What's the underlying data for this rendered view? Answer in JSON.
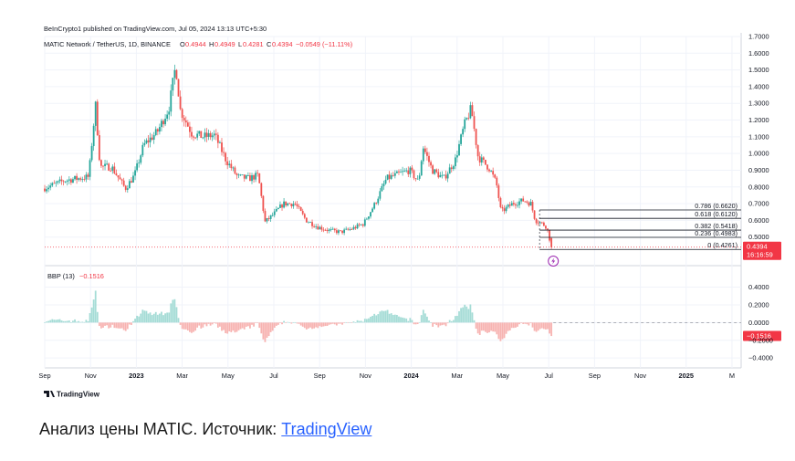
{
  "header": {
    "published": "BeInCrypto1 published on TradingView.com, Jul 05, 2024 13:13 UTC+5:30",
    "symbol": "MATIC Network / TetherUS, 1D, BINANCE",
    "ohlc": {
      "o_label": "O",
      "o_value": "0.4944",
      "h_label": "H",
      "h_value": "0.4949",
      "l_label": "L",
      "l_value": "0.4281",
      "c_label": "C",
      "c_value": "0.4394",
      "change": "−0.0549 (−11.11%)"
    }
  },
  "indicator": {
    "name": "BBP (13)",
    "value": "−0.1516"
  },
  "branding": {
    "text": "TradingView"
  },
  "caption": {
    "text": "Анализ цены MATIC. Источник: ",
    "link": "TradingView"
  },
  "colors": {
    "up": "#26a69a",
    "down": "#ef5350",
    "up_hist": "#a5dcd6",
    "down_hist": "#f7b3b1",
    "fib": "#131722",
    "price_tag": "#f23645"
  },
  "chart_data": [
    {
      "type": "candlestick",
      "ylim": [
        0.4,
        1.7
      ],
      "y_ticks": [
        "0.5000",
        "0.6000",
        "0.7000",
        "0.8000",
        "0.9000",
        "1.0000",
        "1.1000",
        "1.2000",
        "1.3000",
        "1.4000",
        "1.5000",
        "1.6000",
        "1.7000"
      ],
      "x_ticks": [
        "Sep",
        "Nov",
        "2023",
        "Mar",
        "May",
        "Jul",
        "Sep",
        "Nov",
        "2024",
        "Mar",
        "May",
        "Jul",
        "Sep",
        "Nov",
        "2025",
        "M"
      ],
      "x_tick_t": [
        0,
        2,
        4,
        6,
        8,
        10,
        12,
        14,
        16,
        18,
        20,
        22,
        24,
        26,
        28,
        30
      ],
      "last_t": 22.2,
      "anchors": [
        [
          0,
          0.79
        ],
        [
          1,
          0.84
        ],
        [
          2,
          0.86
        ],
        [
          2.3,
          1.29
        ],
        [
          2.5,
          0.92
        ],
        [
          3,
          0.92
        ],
        [
          3.6,
          0.79
        ],
        [
          4,
          0.87
        ],
        [
          4.4,
          1.05
        ],
        [
          5,
          1.13
        ],
        [
          5.5,
          1.27
        ],
        [
          5.8,
          1.53
        ],
        [
          6,
          1.26
        ],
        [
          6.5,
          1.12
        ],
        [
          7,
          1.1
        ],
        [
          7.5,
          1.11
        ],
        [
          8,
          0.96
        ],
        [
          8.5,
          0.86
        ],
        [
          9,
          0.85
        ],
        [
          9.4,
          0.87
        ],
        [
          9.7,
          0.59
        ],
        [
          10.1,
          0.64
        ],
        [
          10.5,
          0.7
        ],
        [
          11,
          0.7
        ],
        [
          11.5,
          0.6
        ],
        [
          12,
          0.56
        ],
        [
          12.5,
          0.54
        ],
        [
          13,
          0.53
        ],
        [
          13.5,
          0.55
        ],
        [
          14,
          0.58
        ],
        [
          14.5,
          0.7
        ],
        [
          15,
          0.85
        ],
        [
          15.6,
          0.88
        ],
        [
          16,
          0.9
        ],
        [
          16.4,
          0.83
        ],
        [
          16.6,
          1.04
        ],
        [
          17,
          0.9
        ],
        [
          17.5,
          0.85
        ],
        [
          18,
          0.96
        ],
        [
          18.4,
          1.17
        ],
        [
          18.7,
          1.27
        ],
        [
          19,
          0.98
        ],
        [
          19.5,
          0.91
        ],
        [
          19.8,
          0.82
        ],
        [
          20,
          0.65
        ],
        [
          20.5,
          0.7
        ],
        [
          21,
          0.72
        ],
        [
          21.3,
          0.7
        ],
        [
          21.5,
          0.6
        ],
        [
          21.8,
          0.58
        ],
        [
          22.0,
          0.56
        ],
        [
          22.2,
          0.4394
        ]
      ],
      "last": {
        "open": 0.4944,
        "high": 0.4949,
        "low": 0.4281,
        "close": 0.4394
      },
      "fib_levels": [
        {
          "label": "0.786 (0.6620)",
          "value": 0.662
        },
        {
          "label": "0.618 (0.6120)",
          "value": 0.612
        },
        {
          "label": "0.382 (0.5418)",
          "value": 0.5418
        },
        {
          "label": "0.236 (0.4983)",
          "value": 0.4983
        },
        {
          "label": "0 (0.4261)",
          "value": 0.4261
        }
      ],
      "price_tag": {
        "value": "0.4394",
        "time": "16:16:59"
      }
    },
    {
      "type": "histogram",
      "name": "BBP (13)",
      "ylim": [
        -0.45,
        0.55
      ],
      "y_ticks": [
        "0.4000",
        "0.2000",
        "0.0000",
        "−0.2000",
        "−0.4000"
      ],
      "last_value": "−0.1516"
    }
  ]
}
